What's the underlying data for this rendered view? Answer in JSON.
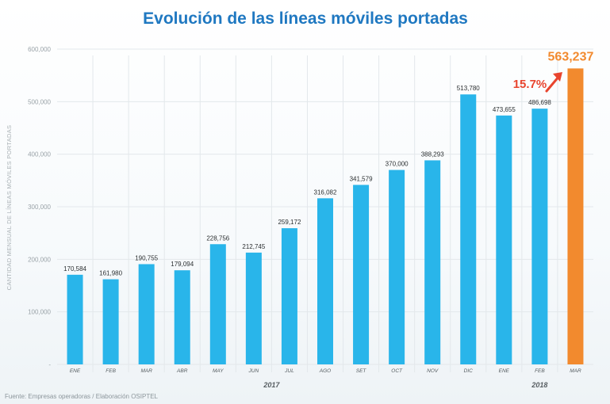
{
  "chart_data": {
    "type": "bar",
    "title": "Evolución de las líneas móviles portadas",
    "ylabel": "CANTIDAD MENSUAL DE LÍNEAS MÓVILES PORTADAS",
    "xlabel": "",
    "ylim": [
      0,
      600000
    ],
    "yticks": [
      "-",
      "100,000",
      "200,000",
      "300,000",
      "400,000",
      "500,000",
      "600,000"
    ],
    "ytick_values": [
      0,
      100000,
      200000,
      300000,
      400000,
      500000,
      600000
    ],
    "categories": [
      "ENE",
      "FEB",
      "MAR",
      "ABR",
      "MAY",
      "JUN",
      "JUL",
      "AGO",
      "SET",
      "OCT",
      "NOV",
      "DIC",
      "ENE",
      "FEB",
      "MAR"
    ],
    "values": [
      170584,
      161980,
      190755,
      179094,
      228756,
      212745,
      259172,
      316082,
      341579,
      370000,
      388293,
      513780,
      473655,
      486698,
      563237
    ],
    "value_labels": [
      "170,584",
      "161,980",
      "190,755",
      "179,094",
      "228,756",
      "212,745",
      "259,172",
      "316,082",
      "341,579",
      "370,000",
      "388,293",
      "513,780",
      "473,655",
      "486,698",
      "563,237"
    ],
    "highlight_index": 14,
    "year_groups": [
      {
        "label": "2017",
        "start": 0,
        "end": 11
      },
      {
        "label": "2018",
        "start": 12,
        "end": 14
      }
    ],
    "growth_annotation": "15.7%",
    "colors": {
      "bar": "#29b5ea",
      "highlight_bar": "#f28a2e",
      "title": "#1f78c1",
      "growth": "#e8442e",
      "highlight_label": "#f28a2e",
      "axis_text": "#9aa3a8",
      "grid": "#e3e8eb"
    },
    "grid": true
  },
  "footer": {
    "source": "Fuente: Empresas operadoras / Elaboración OSIPTEL"
  }
}
